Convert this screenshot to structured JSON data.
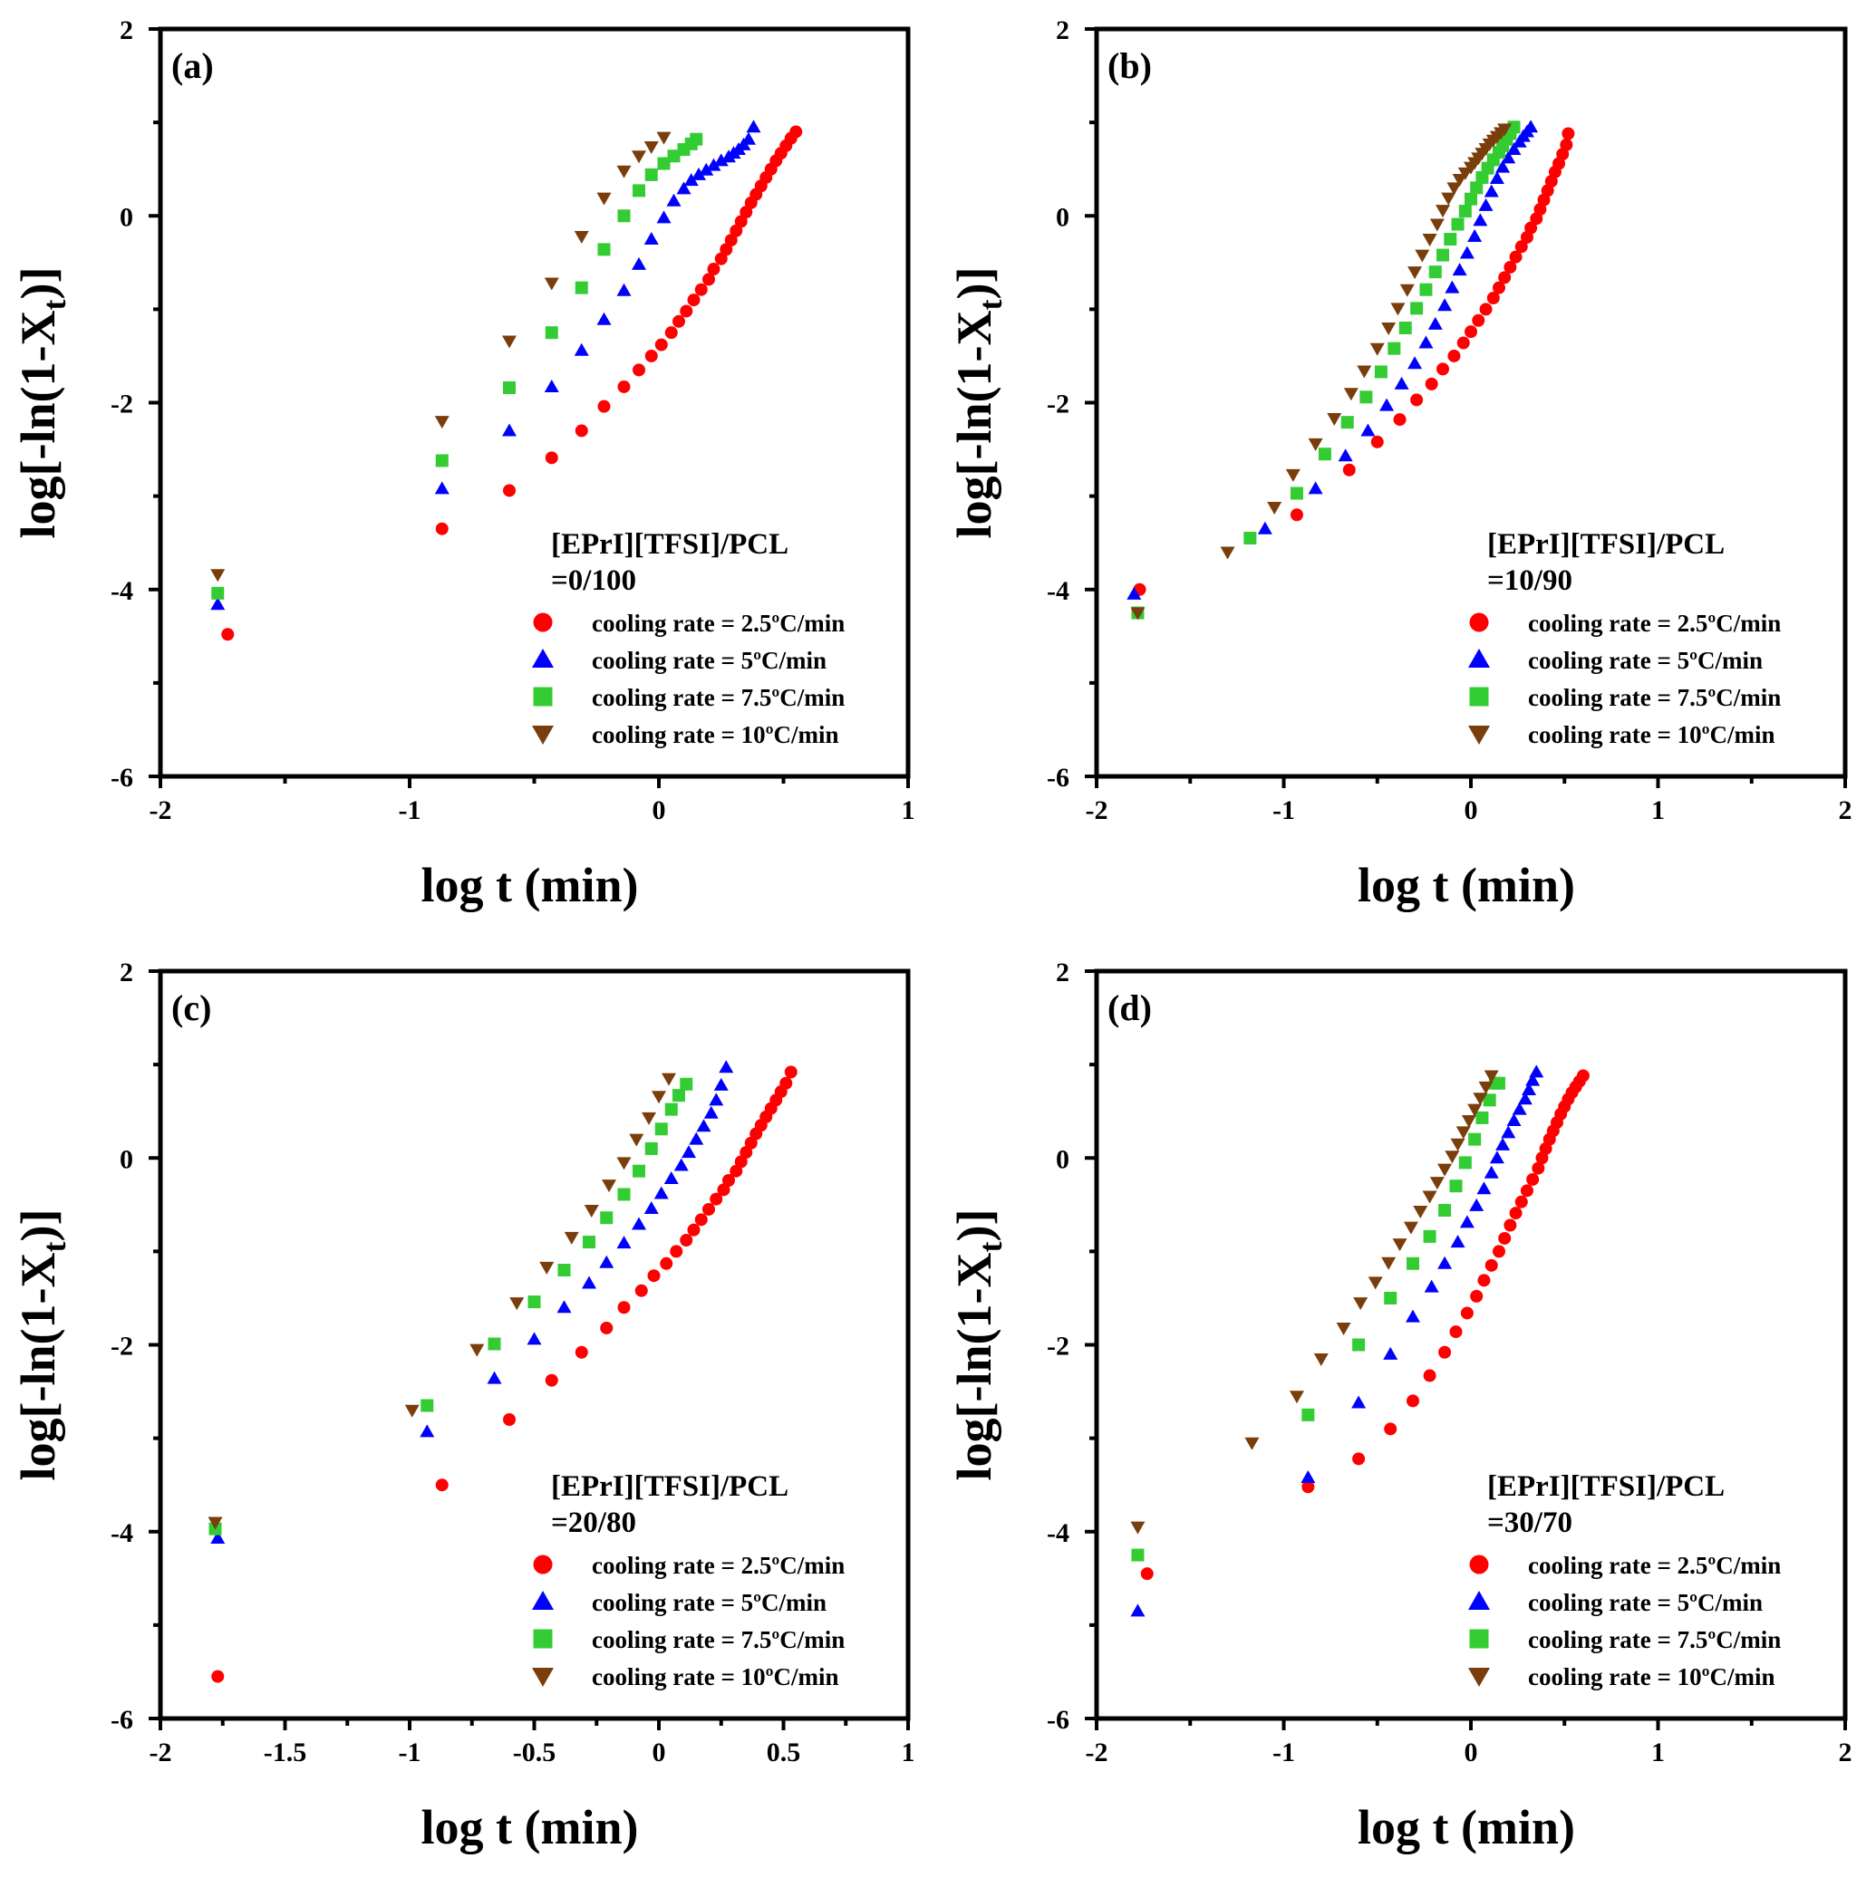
{
  "chart_data": [
    {
      "type": "scatter",
      "panel_label": "(a)",
      "xlabel": "log t (min)",
      "ylabel_main": "log[-ln(1-X",
      "ylabel_sub": "t",
      "ylabel_end": ")]",
      "xlim": [
        -2,
        1
      ],
      "ylim": [
        -6,
        2
      ],
      "xticks": [
        "-2",
        "-1",
        "0",
        "1"
      ],
      "yticks": [
        "2",
        "0",
        "-2",
        "-4",
        "-6"
      ],
      "legend_title": [
        "[EPrI][TFSI]/PCL",
        "=0/100"
      ],
      "series": [
        {
          "name": "cooling rate = 2.5ºC/min",
          "marker": "circle",
          "color": "#ff0000",
          "x": [
            -1.73,
            -0.87,
            -0.6,
            -0.43,
            -0.31,
            -0.22,
            -0.14,
            -0.08,
            -0.03,
            0.01,
            0.05,
            0.08,
            0.11,
            0.14,
            0.17,
            0.2,
            0.22,
            0.25,
            0.27,
            0.29,
            0.31,
            0.33,
            0.35,
            0.37,
            0.39,
            0.41,
            0.43,
            0.45,
            0.47,
            0.49,
            0.51,
            0.53,
            0.55
          ],
          "y": [
            -4.48,
            -3.35,
            -2.94,
            -2.59,
            -2.3,
            -2.04,
            -1.83,
            -1.65,
            -1.5,
            -1.38,
            -1.25,
            -1.13,
            -1.02,
            -0.9,
            -0.79,
            -0.68,
            -0.57,
            -0.46,
            -0.36,
            -0.26,
            -0.16,
            -0.06,
            0.04,
            0.14,
            0.23,
            0.32,
            0.41,
            0.5,
            0.59,
            0.67,
            0.75,
            0.83,
            0.9
          ]
        },
        {
          "name": "cooling rate = 5ºC/min",
          "marker": "triangle",
          "color": "#0000ff",
          "x": [
            -1.77,
            -0.87,
            -0.6,
            -0.43,
            -0.31,
            -0.22,
            -0.14,
            -0.08,
            -0.03,
            0.02,
            0.06,
            0.1,
            0.13,
            0.16,
            0.19,
            0.22,
            0.25,
            0.28,
            0.3,
            0.32,
            0.34,
            0.36,
            0.38
          ],
          "y": [
            -4.16,
            -2.92,
            -2.3,
            -1.83,
            -1.44,
            -1.11,
            -0.8,
            -0.52,
            -0.25,
            -0.02,
            0.16,
            0.29,
            0.38,
            0.44,
            0.49,
            0.54,
            0.59,
            0.63,
            0.67,
            0.71,
            0.76,
            0.82,
            0.95
          ]
        },
        {
          "name": "cooling rate = 7.5ºC/min",
          "marker": "square",
          "color": "#33cc33",
          "x": [
            -1.77,
            -0.87,
            -0.6,
            -0.43,
            -0.31,
            -0.22,
            -0.14,
            -0.08,
            -0.03,
            0.02,
            0.06,
            0.1,
            0.13,
            0.15
          ],
          "y": [
            -4.04,
            -2.62,
            -1.84,
            -1.25,
            -0.77,
            -0.36,
            0.0,
            0.27,
            0.44,
            0.56,
            0.64,
            0.71,
            0.77,
            0.82
          ]
        },
        {
          "name": "cooling rate = 10ºC/min",
          "marker": "triangle-down",
          "color": "#7a3d0c",
          "x": [
            -1.77,
            -0.87,
            -0.6,
            -0.43,
            -0.31,
            -0.22,
            -0.14,
            -0.08,
            -0.03,
            0.02
          ],
          "y": [
            -3.84,
            -2.2,
            -1.34,
            -0.72,
            -0.22,
            0.19,
            0.48,
            0.64,
            0.74,
            0.84
          ]
        }
      ]
    },
    {
      "type": "scatter",
      "panel_label": "(b)",
      "xlabel": "log t (min)",
      "ylabel_main": "log[-ln(1-X",
      "ylabel_sub": "t",
      "ylabel_end": ")]",
      "xlim": [
        -2,
        2
      ],
      "ylim": [
        -6,
        2
      ],
      "xticks": [
        "-2",
        "-1",
        "0",
        "1",
        "2"
      ],
      "yticks": [
        "2",
        "0",
        "-2",
        "-4",
        "-6"
      ],
      "legend_title": [
        "[EPrI][TFSI]/PCL",
        "=10/90"
      ],
      "series": [
        {
          "name": "cooling rate = 2.5ºC/min",
          "marker": "circle",
          "color": "#ff0000",
          "x": [
            -1.77,
            -0.93,
            -0.65,
            -0.5,
            -0.38,
            -0.29,
            -0.21,
            -0.15,
            -0.09,
            -0.04,
            0.0,
            0.04,
            0.08,
            0.12,
            0.15,
            0.18,
            0.21,
            0.24,
            0.27,
            0.3,
            0.32,
            0.35,
            0.37,
            0.39,
            0.41,
            0.43,
            0.45,
            0.47,
            0.49,
            0.51,
            0.52
          ],
          "y": [
            -4.0,
            -3.2,
            -2.72,
            -2.42,
            -2.18,
            -1.97,
            -1.8,
            -1.64,
            -1.5,
            -1.36,
            -1.24,
            -1.12,
            -1.0,
            -0.88,
            -0.77,
            -0.66,
            -0.55,
            -0.44,
            -0.33,
            -0.23,
            -0.13,
            -0.03,
            0.07,
            0.17,
            0.27,
            0.37,
            0.47,
            0.56,
            0.66,
            0.76,
            0.88
          ]
        },
        {
          "name": "cooling rate = 5ºC/min",
          "marker": "triangle",
          "color": "#0000ff",
          "x": [
            -1.8,
            -1.1,
            -0.83,
            -0.67,
            -0.55,
            -0.45,
            -0.37,
            -0.3,
            -0.24,
            -0.19,
            -0.14,
            -0.1,
            -0.06,
            -0.02,
            0.02,
            0.05,
            0.08,
            0.11,
            0.14,
            0.17,
            0.2,
            0.23,
            0.26,
            0.28,
            0.3,
            0.32
          ],
          "y": [
            -4.05,
            -3.35,
            -2.92,
            -2.57,
            -2.3,
            -2.03,
            -1.8,
            -1.58,
            -1.36,
            -1.16,
            -0.96,
            -0.77,
            -0.58,
            -0.4,
            -0.22,
            -0.05,
            0.11,
            0.26,
            0.4,
            0.52,
            0.62,
            0.71,
            0.79,
            0.85,
            0.9,
            0.95
          ]
        },
        {
          "name": "cooling rate = 7.5ºC/min",
          "marker": "square",
          "color": "#33cc33",
          "x": [
            -1.78,
            -1.18,
            -0.93,
            -0.78,
            -0.66,
            -0.56,
            -0.48,
            -0.41,
            -0.35,
            -0.29,
            -0.24,
            -0.19,
            -0.15,
            -0.11,
            -0.07,
            -0.03,
            0.0,
            0.03,
            0.06,
            0.09,
            0.12,
            0.15,
            0.17,
            0.19,
            0.21,
            0.23
          ],
          "y": [
            -4.25,
            -3.45,
            -2.97,
            -2.55,
            -2.21,
            -1.94,
            -1.67,
            -1.42,
            -1.2,
            -0.99,
            -0.79,
            -0.6,
            -0.42,
            -0.25,
            -0.09,
            0.05,
            0.18,
            0.3,
            0.41,
            0.51,
            0.6,
            0.68,
            0.75,
            0.82,
            0.88,
            0.95
          ]
        },
        {
          "name": "cooling rate = 10ºC/min",
          "marker": "triangle-down",
          "color": "#7a3d0c",
          "x": [
            -1.78,
            -1.3,
            -1.05,
            -0.95,
            -0.83,
            -0.73,
            -0.64,
            -0.57,
            -0.5,
            -0.44,
            -0.39,
            -0.34,
            -0.3,
            -0.26,
            -0.22,
            -0.18,
            -0.15,
            -0.12,
            -0.09,
            -0.06,
            -0.03,
            0.0,
            0.02,
            0.04,
            0.06,
            0.08,
            0.1,
            0.12,
            0.14,
            0.16,
            0.18
          ],
          "y": [
            -4.25,
            -3.6,
            -3.12,
            -2.77,
            -2.44,
            -2.17,
            -1.9,
            -1.66,
            -1.42,
            -1.2,
            -0.99,
            -0.79,
            -0.6,
            -0.42,
            -0.25,
            -0.09,
            0.06,
            0.19,
            0.3,
            0.39,
            0.46,
            0.52,
            0.57,
            0.62,
            0.67,
            0.72,
            0.77,
            0.81,
            0.85,
            0.89,
            0.93
          ]
        }
      ]
    },
    {
      "type": "scatter",
      "panel_label": "(c)",
      "xlabel": "log t (min)",
      "ylabel_main": "log[-ln(1-X",
      "ylabel_sub": "t",
      "ylabel_end": ")]",
      "xlim": [
        -2,
        1
      ],
      "ylim": [
        -6,
        2
      ],
      "xticks": [
        "-2",
        "-1.5",
        "-1",
        "-0.5",
        "0",
        "0.5",
        "1"
      ],
      "yticks": [
        "2",
        "0",
        "-2",
        "-4",
        "-6"
      ],
      "legend_title": [
        "[EPrI][TFSI]/PCL",
        "=20/80"
      ],
      "series": [
        {
          "name": "cooling rate = 2.5ºC/min",
          "marker": "circle",
          "color": "#ff0000",
          "x": [
            -1.77,
            -0.87,
            -0.6,
            -0.43,
            -0.31,
            -0.21,
            -0.14,
            -0.07,
            -0.02,
            0.03,
            0.07,
            0.11,
            0.14,
            0.17,
            0.2,
            0.23,
            0.26,
            0.28,
            0.31,
            0.33,
            0.35,
            0.37,
            0.39,
            0.41,
            0.43,
            0.45,
            0.47,
            0.49,
            0.51,
            0.53
          ],
          "y": [
            -5.55,
            -3.5,
            -2.8,
            -2.38,
            -2.08,
            -1.82,
            -1.6,
            -1.42,
            -1.26,
            -1.13,
            -1.0,
            -0.88,
            -0.77,
            -0.66,
            -0.55,
            -0.44,
            -0.34,
            -0.24,
            -0.14,
            -0.04,
            0.06,
            0.16,
            0.26,
            0.35,
            0.44,
            0.53,
            0.62,
            0.71,
            0.8,
            0.92
          ]
        },
        {
          "name": "cooling rate = 5ºC/min",
          "marker": "triangle",
          "color": "#0000ff",
          "x": [
            -1.77,
            -0.93,
            -0.66,
            -0.5,
            -0.38,
            -0.28,
            -0.21,
            -0.14,
            -0.08,
            -0.03,
            0.01,
            0.05,
            0.09,
            0.12,
            0.15,
            0.18,
            0.21,
            0.23,
            0.25,
            0.27
          ],
          "y": [
            -4.07,
            -2.93,
            -2.36,
            -1.94,
            -1.6,
            -1.34,
            -1.12,
            -0.91,
            -0.71,
            -0.54,
            -0.38,
            -0.22,
            -0.08,
            0.06,
            0.2,
            0.34,
            0.48,
            0.62,
            0.78,
            0.97
          ]
        },
        {
          "name": "cooling rate = 7.5ºC/min",
          "marker": "square",
          "color": "#33cc33",
          "x": [
            -1.78,
            -0.93,
            -0.66,
            -0.5,
            -0.38,
            -0.28,
            -0.21,
            -0.14,
            -0.08,
            -0.03,
            0.01,
            0.05,
            0.08,
            0.11
          ],
          "y": [
            -3.97,
            -2.65,
            -1.99,
            -1.54,
            -1.2,
            -0.9,
            -0.64,
            -0.39,
            -0.14,
            0.1,
            0.31,
            0.52,
            0.67,
            0.79
          ]
        },
        {
          "name": "cooling rate = 10ºC/min",
          "marker": "triangle-down",
          "color": "#7a3d0c",
          "x": [
            -1.78,
            -0.99,
            -0.73,
            -0.57,
            -0.45,
            -0.35,
            -0.27,
            -0.2,
            -0.14,
            -0.09,
            -0.04,
            0.0,
            0.04
          ],
          "y": [
            -3.9,
            -2.7,
            -2.05,
            -1.55,
            -1.17,
            -0.85,
            -0.56,
            -0.29,
            -0.05,
            0.2,
            0.43,
            0.66,
            0.85
          ]
        }
      ]
    },
    {
      "type": "scatter",
      "panel_label": "(d)",
      "xlabel": "log t (min)",
      "ylabel_main": "log[-ln(1-X",
      "ylabel_sub": "t",
      "ylabel_end": ")]",
      "xlim": [
        -2,
        2
      ],
      "ylim": [
        -6,
        2
      ],
      "xticks": [
        "-2",
        "-1",
        "0",
        "1",
        "2"
      ],
      "yticks": [
        "2",
        "0",
        "-2",
        "-4",
        "-6"
      ],
      "legend_title": [
        "[EPrI][TFSI]/PCL",
        "=30/70"
      ],
      "series": [
        {
          "name": "cooling rate = 2.5ºC/min",
          "marker": "circle",
          "color": "#ff0000",
          "x": [
            -1.73,
            -0.87,
            -0.6,
            -0.43,
            -0.31,
            -0.22,
            -0.14,
            -0.08,
            -0.02,
            0.03,
            0.07,
            0.11,
            0.15,
            0.18,
            0.21,
            0.24,
            0.27,
            0.3,
            0.33,
            0.36,
            0.38,
            0.4,
            0.42,
            0.44,
            0.46,
            0.48,
            0.5,
            0.52,
            0.54,
            0.56,
            0.58,
            0.6
          ],
          "y": [
            -4.45,
            -3.52,
            -3.22,
            -2.9,
            -2.6,
            -2.33,
            -2.08,
            -1.86,
            -1.66,
            -1.48,
            -1.31,
            -1.15,
            -1.0,
            -0.86,
            -0.72,
            -0.59,
            -0.47,
            -0.35,
            -0.23,
            -0.11,
            0.0,
            0.1,
            0.2,
            0.29,
            0.38,
            0.47,
            0.55,
            0.63,
            0.7,
            0.76,
            0.82,
            0.88
          ]
        },
        {
          "name": "cooling rate = 5ºC/min",
          "marker": "triangle",
          "color": "#0000ff",
          "x": [
            -1.78,
            -0.87,
            -0.6,
            -0.43,
            -0.31,
            -0.21,
            -0.14,
            -0.07,
            -0.02,
            0.03,
            0.07,
            0.11,
            0.14,
            0.17,
            0.2,
            0.23,
            0.26,
            0.29,
            0.31,
            0.33,
            0.35
          ],
          "y": [
            -4.85,
            -3.42,
            -2.62,
            -2.1,
            -1.7,
            -1.38,
            -1.13,
            -0.9,
            -0.69,
            -0.51,
            -0.33,
            -0.16,
            0.0,
            0.14,
            0.27,
            0.4,
            0.52,
            0.63,
            0.73,
            0.83,
            0.92
          ]
        },
        {
          "name": "cooling rate = 7.5ºC/min",
          "marker": "square",
          "color": "#33cc33",
          "x": [
            -1.78,
            -0.87,
            -0.6,
            -0.43,
            -0.31,
            -0.22,
            -0.14,
            -0.08,
            -0.03,
            0.02,
            0.06,
            0.1,
            0.13,
            0.15
          ],
          "y": [
            -4.25,
            -2.75,
            -2.0,
            -1.5,
            -1.13,
            -0.84,
            -0.56,
            -0.3,
            -0.05,
            0.2,
            0.43,
            0.62,
            0.8,
            0.8
          ]
        },
        {
          "name": "cooling rate = 10ºC/min",
          "marker": "triangle-down",
          "color": "#7a3d0c",
          "x": [
            -1.78,
            -1.17,
            -0.93,
            -0.8,
            -0.68,
            -0.59,
            -0.51,
            -0.44,
            -0.38,
            -0.32,
            -0.27,
            -0.22,
            -0.18,
            -0.14,
            -0.1,
            -0.07,
            -0.04,
            -0.01,
            0.02,
            0.05,
            0.08,
            0.11
          ],
          "y": [
            -3.95,
            -3.05,
            -2.55,
            -2.15,
            -1.82,
            -1.55,
            -1.33,
            -1.12,
            -0.92,
            -0.74,
            -0.57,
            -0.41,
            -0.26,
            -0.12,
            0.02,
            0.15,
            0.28,
            0.4,
            0.52,
            0.64,
            0.76,
            0.88
          ]
        }
      ]
    }
  ]
}
